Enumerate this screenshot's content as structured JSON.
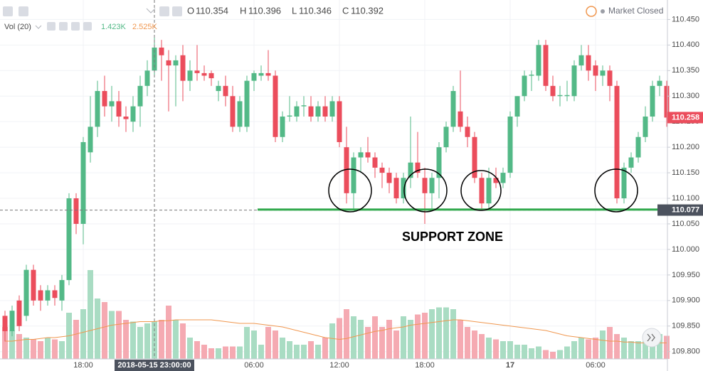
{
  "chart_data": {
    "type": "candlestick",
    "header": {
      "o_label": "O",
      "o": "110.354",
      "h_label": "H",
      "h": "110.396",
      "l_label": "L",
      "l": "110.346",
      "c_label": "C",
      "c": "110.392"
    },
    "volume_legend": {
      "name": "Vol (20)",
      "value": "1.423K",
      "ma": "2.525K"
    },
    "status": "Market Closed",
    "annotation": "SUPPORT ZONE",
    "support_level": 110.078,
    "crosshair": {
      "x": {
        "value": 21,
        "label": "2018-05-15 23:00:00"
      },
      "y": 110.077
    },
    "colors": {
      "up": "#53b987",
      "down": "#eb4d5c",
      "up_volume": "#a9dcc3",
      "down_volume": "#f5aab2",
      "ma": "#f0974f",
      "support": "#2ea84a"
    },
    "ylim": [
      109.7857,
      110.4881
    ],
    "yticks": [
      {
        "value": 110.45,
        "label": "110.450"
      },
      {
        "value": 110.4,
        "label": "110.400"
      },
      {
        "value": 110.35,
        "label": "110.350"
      },
      {
        "value": 110.3,
        "label": "110.300"
      },
      {
        "value": 110.25,
        "label": "110.250"
      },
      {
        "value": 110.2,
        "label": "110.200"
      },
      {
        "value": 110.15,
        "label": "110.150"
      },
      {
        "value": 110.1,
        "label": "110.100"
      },
      {
        "value": 110.05,
        "label": "110.050"
      },
      {
        "value": 110.0,
        "label": "110.000"
      },
      {
        "value": 109.95,
        "label": "109.950"
      },
      {
        "value": 109.9,
        "label": "109.900"
      },
      {
        "value": 109.85,
        "label": "109.850"
      },
      {
        "value": 109.8,
        "label": "109.800"
      }
    ],
    "xticks": [
      {
        "value": 11,
        "label": "18:00"
      },
      {
        "value": 35,
        "label": "06:00"
      },
      {
        "value": 47,
        "label": "12:00"
      },
      {
        "value": 59,
        "label": "18:00"
      },
      {
        "value": 71,
        "label": "17"
      },
      {
        "value": 83,
        "label": "06:00"
      }
    ],
    "vlim": [
      0,
      6
    ],
    "candles": [
      [
        109.87,
        109.88,
        109.82,
        109.84
      ],
      [
        109.84,
        109.89,
        109.83,
        109.88
      ],
      [
        109.9,
        109.91,
        109.84,
        109.85
      ],
      [
        109.87,
        109.97,
        109.86,
        109.96
      ],
      [
        109.96,
        109.97,
        109.89,
        109.9
      ],
      [
        109.92,
        109.93,
        109.88,
        109.9
      ],
      [
        109.9,
        109.93,
        109.89,
        109.92
      ],
      [
        109.92,
        109.93,
        109.89,
        109.905
      ],
      [
        109.9,
        109.95,
        109.88,
        109.94
      ],
      [
        109.94,
        110.11,
        109.93,
        110.1
      ],
      [
        110.1,
        110.11,
        110.03,
        110.05
      ],
      [
        110.05,
        110.22,
        110.01,
        110.21
      ],
      [
        110.19,
        110.3,
        110.17,
        110.24
      ],
      [
        110.24,
        110.33,
        110.22,
        110.31
      ],
      [
        110.31,
        110.34,
        110.26,
        110.28
      ],
      [
        110.28,
        110.32,
        110.25,
        110.29
      ],
      [
        110.29,
        110.31,
        110.24,
        110.26
      ],
      [
        110.26,
        110.28,
        110.23,
        110.255
      ],
      [
        110.25,
        110.3,
        110.23,
        110.28
      ],
      [
        110.28,
        110.34,
        110.24,
        110.32
      ],
      [
        110.32,
        110.37,
        110.3,
        110.35
      ],
      [
        110.35,
        110.42,
        110.34,
        110.395
      ],
      [
        110.395,
        110.41,
        110.33,
        110.38
      ],
      [
        110.37,
        110.39,
        110.27,
        110.36
      ],
      [
        110.36,
        110.38,
        110.28,
        110.37
      ],
      [
        110.38,
        110.4,
        110.29,
        110.33
      ],
      [
        110.33,
        110.37,
        110.31,
        110.35
      ],
      [
        110.35,
        110.4,
        110.33,
        110.345
      ],
      [
        110.345,
        110.36,
        110.33,
        110.34
      ],
      [
        110.345,
        110.35,
        110.32,
        110.335
      ],
      [
        110.31,
        110.33,
        110.29,
        110.32
      ],
      [
        110.32,
        110.34,
        110.28,
        110.3
      ],
      [
        110.3,
        110.32,
        110.23,
        110.24
      ],
      [
        110.24,
        110.3,
        110.23,
        110.29
      ],
      [
        110.24,
        110.34,
        110.23,
        110.33
      ],
      [
        110.33,
        110.35,
        110.31,
        110.345
      ],
      [
        110.34,
        110.36,
        110.33,
        110.345
      ],
      [
        110.345,
        110.39,
        110.33,
        110.34
      ],
      [
        110.34,
        110.35,
        110.21,
        110.22
      ],
      [
        110.22,
        110.27,
        110.21,
        110.26
      ],
      [
        110.26,
        110.3,
        110.25,
        110.262
      ],
      [
        110.26,
        110.29,
        110.25,
        110.28
      ],
      [
        110.28,
        110.3,
        110.26,
        110.282
      ],
      [
        110.28,
        110.3,
        110.25,
        110.26
      ],
      [
        110.26,
        110.29,
        110.25,
        110.28
      ],
      [
        110.28,
        110.3,
        110.25,
        110.26
      ],
      [
        110.26,
        110.3,
        110.25,
        110.29
      ],
      [
        110.29,
        110.3,
        110.2,
        110.21
      ],
      [
        110.2,
        110.24,
        110.09,
        110.11
      ],
      [
        110.11,
        110.19,
        110.08,
        110.18
      ],
      [
        110.18,
        110.2,
        110.15,
        110.19
      ],
      [
        110.19,
        110.22,
        110.17,
        110.18
      ],
      [
        110.18,
        110.19,
        110.14,
        110.16
      ],
      [
        110.16,
        110.17,
        110.12,
        110.15
      ],
      [
        110.15,
        110.16,
        110.11,
        110.13
      ],
      [
        110.14,
        110.15,
        110.09,
        110.1
      ],
      [
        110.1,
        110.15,
        110.09,
        110.14
      ],
      [
        110.14,
        110.26,
        110.12,
        110.17
      ],
      [
        110.17,
        110.23,
        110.14,
        110.15
      ],
      [
        110.14,
        110.16,
        110.05,
        110.11
      ],
      [
        110.11,
        110.15,
        110.08,
        110.14
      ],
      [
        110.14,
        110.21,
        110.1,
        110.2
      ],
      [
        110.2,
        110.25,
        110.19,
        110.24
      ],
      [
        110.24,
        110.32,
        110.23,
        110.31
      ],
      [
        110.27,
        110.35,
        110.23,
        110.24
      ],
      [
        110.24,
        110.26,
        110.2,
        110.22
      ],
      [
        110.22,
        110.23,
        110.13,
        110.14
      ],
      [
        110.14,
        110.15,
        110.08,
        110.09
      ],
      [
        110.09,
        110.16,
        110.08,
        110.14
      ],
      [
        110.14,
        110.16,
        110.12,
        110.13
      ],
      [
        110.13,
        110.16,
        110.12,
        110.15
      ],
      [
        110.15,
        110.27,
        110.14,
        110.26
      ],
      [
        110.26,
        110.3,
        110.24,
        110.3
      ],
      [
        110.3,
        110.35,
        110.29,
        110.34
      ],
      [
        110.34,
        110.35,
        110.31,
        110.342
      ],
      [
        110.34,
        110.41,
        110.33,
        110.4
      ],
      [
        110.4,
        110.41,
        110.31,
        110.32
      ],
      [
        110.32,
        110.34,
        110.29,
        110.3
      ],
      [
        110.3,
        110.32,
        110.28,
        110.302
      ],
      [
        110.3,
        110.33,
        110.29,
        110.302
      ],
      [
        110.3,
        110.37,
        110.29,
        110.36
      ],
      [
        110.36,
        110.4,
        110.35,
        110.38
      ],
      [
        110.38,
        110.4,
        110.33,
        110.35
      ],
      [
        110.36,
        110.37,
        110.31,
        110.34
      ],
      [
        110.34,
        110.36,
        110.32,
        110.35
      ],
      [
        110.35,
        110.36,
        110.29,
        110.32
      ],
      [
        110.32,
        110.33,
        110.09,
        110.1
      ],
      [
        110.1,
        110.17,
        110.09,
        110.16
      ],
      [
        110.16,
        110.19,
        110.15,
        110.18
      ],
      [
        110.18,
        110.23,
        110.17,
        110.22
      ],
      [
        110.22,
        110.28,
        110.21,
        110.26
      ],
      [
        110.26,
        110.33,
        110.25,
        110.32
      ],
      [
        110.32,
        110.34,
        110.3,
        110.33
      ],
      [
        110.32,
        110.33,
        110.24,
        110.258
      ]
    ],
    "volumes": [
      1.8,
      1.6,
      1.4,
      1.2,
      1.1,
      1.0,
      1.2,
      1.1,
      1.0,
      2.6,
      2.2,
      2.8,
      5.0,
      3.4,
      3.2,
      2.7,
      2.7,
      2.2,
      2.1,
      1.8,
      2.0,
      2.1,
      2.2,
      3.0,
      2.2,
      2.0,
      1.2,
      1.0,
      0.8,
      0.6,
      0.6,
      0.7,
      0.7,
      0.7,
      1.8,
      1.6,
      0.8,
      1.8,
      1.6,
      1.2,
      1.0,
      0.8,
      0.8,
      1.0,
      0.8,
      1.2,
      2.0,
      2.3,
      2.8,
      2.4,
      2.2,
      1.8,
      2.4,
      1.8,
      2.2,
      1.6,
      2.4,
      2.2,
      2.5,
      2.6,
      2.8,
      2.9,
      2.9,
      2.8,
      2.2,
      1.8,
      1.6,
      1.4,
      1.2,
      1.1,
      1.0,
      1.0,
      0.8,
      0.8,
      0.6,
      0.7,
      0.5,
      0.4,
      0.5,
      0.7,
      1.0,
      1.2,
      1.1,
      1.2,
      1.6,
      1.8,
      1.4,
      1.2,
      1.0,
      1.0,
      1.0,
      1.2,
      1.4,
      1.3
    ],
    "volume_ma": [
      1.0,
      1.0,
      1.05,
      1.1,
      1.1,
      1.15,
      1.2,
      1.2,
      1.25,
      1.3,
      1.4,
      1.5,
      1.6,
      1.7,
      1.8,
      1.9,
      1.95,
      2.0,
      2.05,
      2.1,
      2.1,
      2.1,
      2.15,
      2.15,
      2.2,
      2.2,
      2.2,
      2.2,
      2.2,
      2.2,
      2.15,
      2.1,
      2.05,
      2.0,
      2.0,
      2.0,
      1.95,
      1.9,
      1.85,
      1.8,
      1.7,
      1.6,
      1.5,
      1.4,
      1.3,
      1.2,
      1.15,
      1.1,
      1.15,
      1.25,
      1.35,
      1.45,
      1.55,
      1.6,
      1.7,
      1.75,
      1.8,
      1.9,
      1.95,
      2.0,
      2.05,
      2.1,
      2.15,
      2.2,
      2.2,
      2.15,
      2.1,
      2.05,
      2.0,
      1.95,
      1.9,
      1.85,
      1.8,
      1.75,
      1.7,
      1.65,
      1.6,
      1.5,
      1.4,
      1.3,
      1.25,
      1.2,
      1.15,
      1.1,
      1.05,
      1.0,
      1.0,
      0.95,
      0.95,
      0.9,
      0.9,
      0.9,
      0.9,
      0.9
    ]
  }
}
